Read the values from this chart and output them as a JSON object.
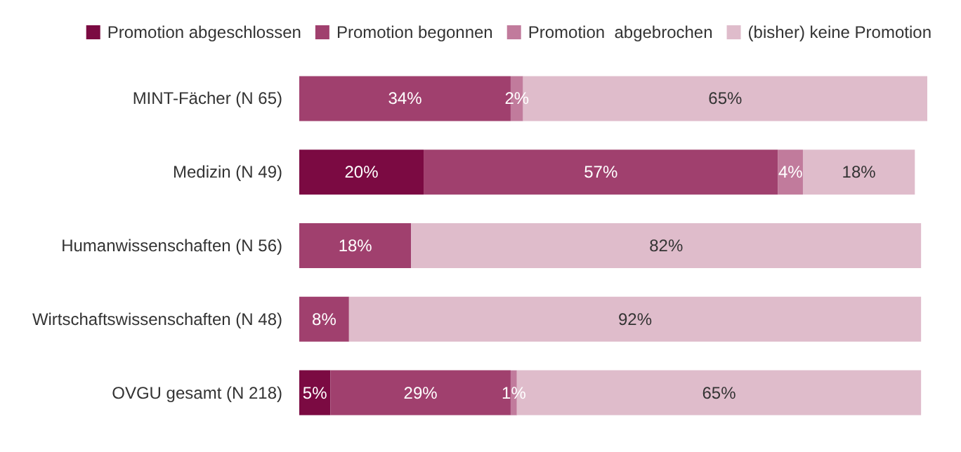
{
  "chart_data": {
    "type": "bar",
    "orientation": "horizontal",
    "stacked": true,
    "legend": "top",
    "tick_labels": "y",
    "categories": [
      "MINT-Fächer (N 65)",
      "Medizin (N 49)",
      "Humanwissenschaften (N 56)",
      "Wirtschaftswissenschaften (N 48)",
      "OVGU gesamt (N 218)"
    ],
    "series": [
      {
        "name": "Promotion abgeschlossen",
        "color": "#7b0a42",
        "values": [
          null,
          20,
          null,
          null,
          5
        ],
        "value_labels": [
          null,
          "20%",
          null,
          null,
          "5%"
        ]
      },
      {
        "name": "Promotion begonnen",
        "color": "#a0406e",
        "values": [
          34,
          57,
          18,
          8,
          29
        ],
        "value_labels": [
          "34%",
          "57%",
          "18%",
          "8%",
          "29%"
        ]
      },
      {
        "name": "Promotion  abgebrochen",
        "color": "#c17b9c",
        "values": [
          2,
          4,
          null,
          null,
          1
        ],
        "value_labels": [
          "2%",
          "4%",
          null,
          null,
          "1%"
        ]
      },
      {
        "name": "(bisher) keine Promotion",
        "color": "#dfbccb",
        "values": [
          65,
          18,
          82,
          92,
          65
        ],
        "value_labels": [
          "65%",
          "18%",
          "82%",
          "92%",
          "65%"
        ]
      }
    ]
  }
}
